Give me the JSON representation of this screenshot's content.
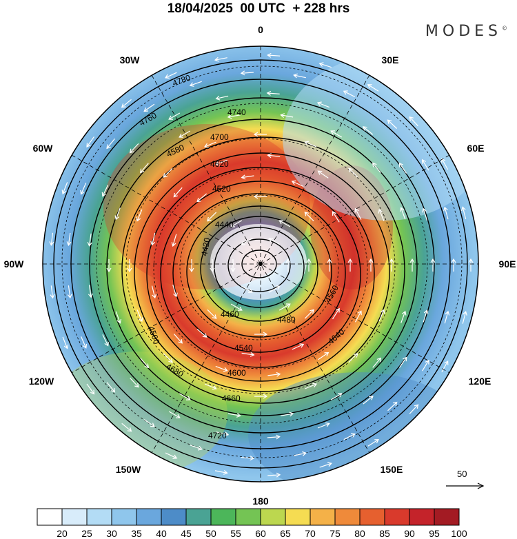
{
  "title": "18/04/2025  00 UTC  + 228 hrs",
  "brand": "MODES",
  "brand_mark": "©",
  "longitude_labels": [
    {
      "lon": 0,
      "label": "0"
    },
    {
      "lon": 30,
      "label": "30E"
    },
    {
      "lon": 60,
      "label": "60E"
    },
    {
      "lon": 90,
      "label": "90E"
    },
    {
      "lon": 120,
      "label": "120E"
    },
    {
      "lon": 150,
      "label": "150E"
    },
    {
      "lon": 180,
      "label": "180"
    },
    {
      "lon": -150,
      "label": "150W"
    },
    {
      "lon": -120,
      "label": "120W"
    },
    {
      "lon": -90,
      "label": "90W"
    },
    {
      "lon": -60,
      "label": "60W"
    },
    {
      "lon": -30,
      "label": "30W"
    }
  ],
  "contour_labels": [
    "4780",
    "4760",
    "4740",
    "4700",
    "4680",
    "4620",
    "4580",
    "4520",
    "4500",
    "4440",
    "4420",
    "4460",
    "4480",
    "4540",
    "4600",
    "4640",
    "4660",
    "4720",
    "4560"
  ],
  "reference_vector_label": "50",
  "colors": {
    "scale": [
      "#ffffff",
      "#d8ecfa",
      "#b3dcf5",
      "#8fc6ec",
      "#6aa7dd",
      "#4d8cc8",
      "#4aa394",
      "#4cb65a",
      "#74c454",
      "#bcd74f",
      "#f5dc52",
      "#f4b148",
      "#ef8a3a",
      "#e6602f",
      "#d93a2c",
      "#c4232a",
      "#a31b23"
    ]
  },
  "colorbar": {
    "ticks": [
      "20",
      "25",
      "30",
      "35",
      "40",
      "45",
      "50",
      "55",
      "60",
      "65",
      "70",
      "75",
      "80",
      "85",
      "90",
      "95",
      "100"
    ]
  }
}
